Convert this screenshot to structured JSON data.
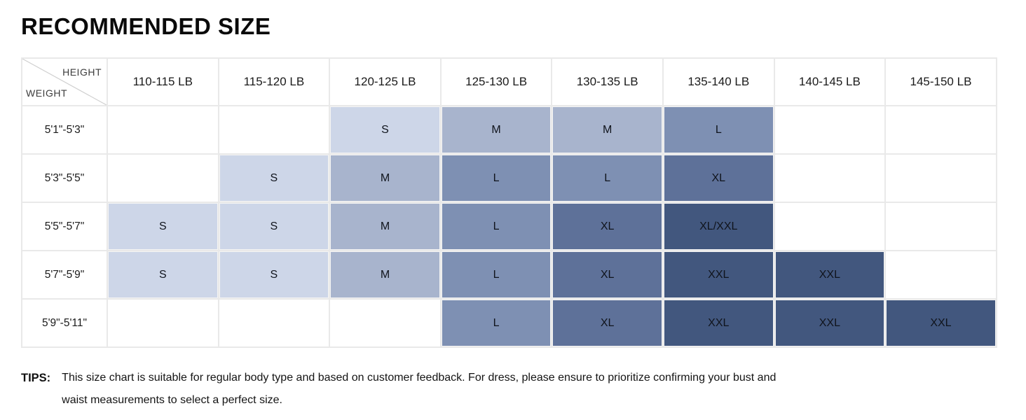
{
  "title": "RECOMMENDED SIZE",
  "chart_data": {
    "type": "table",
    "title": "RECOMMENDED SIZE",
    "corner": {
      "top_right": "HEIGHT",
      "bottom_left": "WEIGHT"
    },
    "columns": [
      "110-115 LB",
      "115-120 LB",
      "120-125 LB",
      "125-130 LB",
      "130-135 LB",
      "135-140 LB",
      "140-145 LB",
      "145-150 LB"
    ],
    "rows": [
      "5'1\"-5'3\"",
      "5'3\"-5'5\"",
      "5'5\"-5'7\"",
      "5'7\"-5'9\"",
      "5'9\"-5'11\""
    ],
    "cells": [
      [
        "",
        "",
        "S",
        "M",
        "M",
        "L",
        "",
        ""
      ],
      [
        "",
        "S",
        "M",
        "L",
        "L",
        "XL",
        "",
        ""
      ],
      [
        "S",
        "S",
        "M",
        "L",
        "XL",
        "XL/XXL",
        "",
        ""
      ],
      [
        "S",
        "S",
        "M",
        "L",
        "XL",
        "XXL",
        "XXL",
        ""
      ],
      [
        "",
        "",
        "",
        "L",
        "XL",
        "XXL",
        "XXL",
        "XXL"
      ]
    ],
    "size_colors": {
      "S": "#cdd6e8",
      "M": "#a8b4cd",
      "L": "#7e90b3",
      "XL": "#5e7199",
      "XXL": "#42577e",
      "XL/XXL": "#42577e"
    },
    "grid": true,
    "legend_position": "none"
  },
  "tips": {
    "label": "TIPS:",
    "text": "This size chart is suitable for regular body type and based on customer feedback. For dress, please ensure to prioritize confirming your bust and waist measurements to select a perfect size."
  }
}
